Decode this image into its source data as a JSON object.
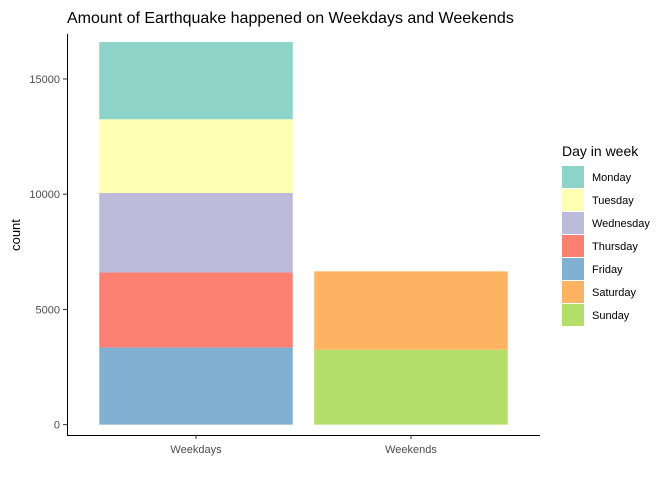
{
  "chart_data": {
    "type": "bar",
    "stacked": true,
    "title": "Amount of Earthquake happened on Weekdays and Weekends",
    "xlabel": "",
    "ylabel": "count",
    "categories": [
      "Weekdays",
      "Weekends"
    ],
    "ylim": [
      -450,
      16950
    ],
    "yticks": [
      0,
      5000,
      10000,
      15000
    ],
    "legend": {
      "title": "Day in week",
      "position": "right"
    },
    "grid": false,
    "series": [
      {
        "name": "Friday",
        "color": "#80B1D3",
        "values": [
          3350,
          0
        ]
      },
      {
        "name": "Thursday",
        "color": "#FB8072",
        "values": [
          3250,
          0
        ]
      },
      {
        "name": "Wednesday",
        "color": "#BEBADA",
        "values": [
          3450,
          0
        ]
      },
      {
        "name": "Tuesday",
        "color": "#FFFFB3",
        "values": [
          3200,
          0
        ]
      },
      {
        "name": "Monday",
        "color": "#8DD3C7",
        "values": [
          3350,
          0
        ]
      },
      {
        "name": "Sunday",
        "color": "#B3DE69",
        "values": [
          0,
          3250
        ]
      },
      {
        "name": "Saturday",
        "color": "#FDB462",
        "values": [
          0,
          3400
        ]
      }
    ],
    "legend_order": [
      "Monday",
      "Tuesday",
      "Wednesday",
      "Thursday",
      "Friday",
      "Saturday",
      "Sunday"
    ]
  }
}
